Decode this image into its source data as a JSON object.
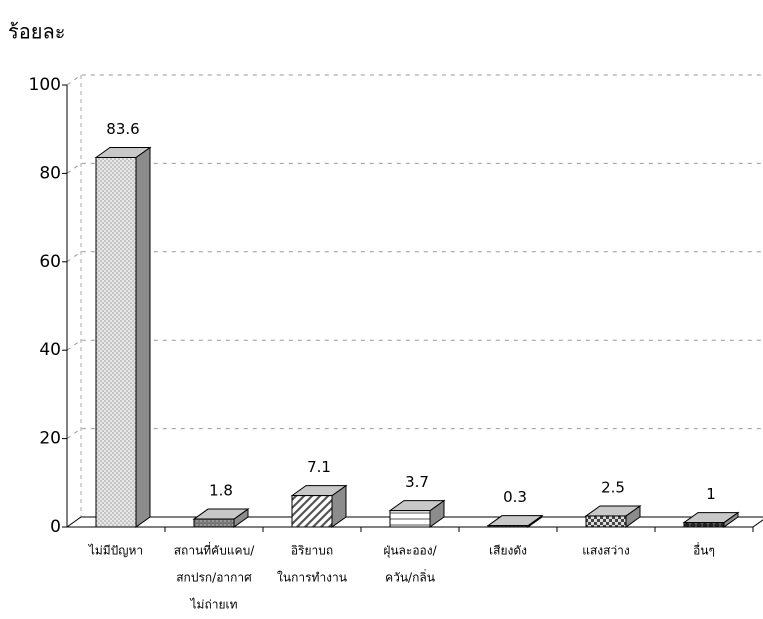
{
  "chart_data": {
    "type": "bar3d",
    "y_axis_label": "ร้อยละ",
    "categories": [
      [
        "ไม่มีปัญหา"
      ],
      [
        "สถานที่คับแคบ/",
        "สกปรก/อากาศ",
        "ไม่ถ่ายเท"
      ],
      [
        "อิริยาบถ",
        "ในการทำงาน"
      ],
      [
        "ฝุ่นละออง/",
        "ควัน/กลิ่น"
      ],
      [
        "เสียงดัง"
      ],
      [
        "แสงสว่าง"
      ],
      [
        "อื่นๆ"
      ]
    ],
    "values": [
      83.6,
      1.8,
      7.1,
      3.7,
      0.3,
      2.5,
      1
    ],
    "ylim": [
      0,
      100
    ],
    "yticks": [
      0,
      20,
      40,
      60,
      80,
      100
    ],
    "grid": true,
    "color": "#c8c8c8",
    "side_color": "#8c8c8c"
  }
}
